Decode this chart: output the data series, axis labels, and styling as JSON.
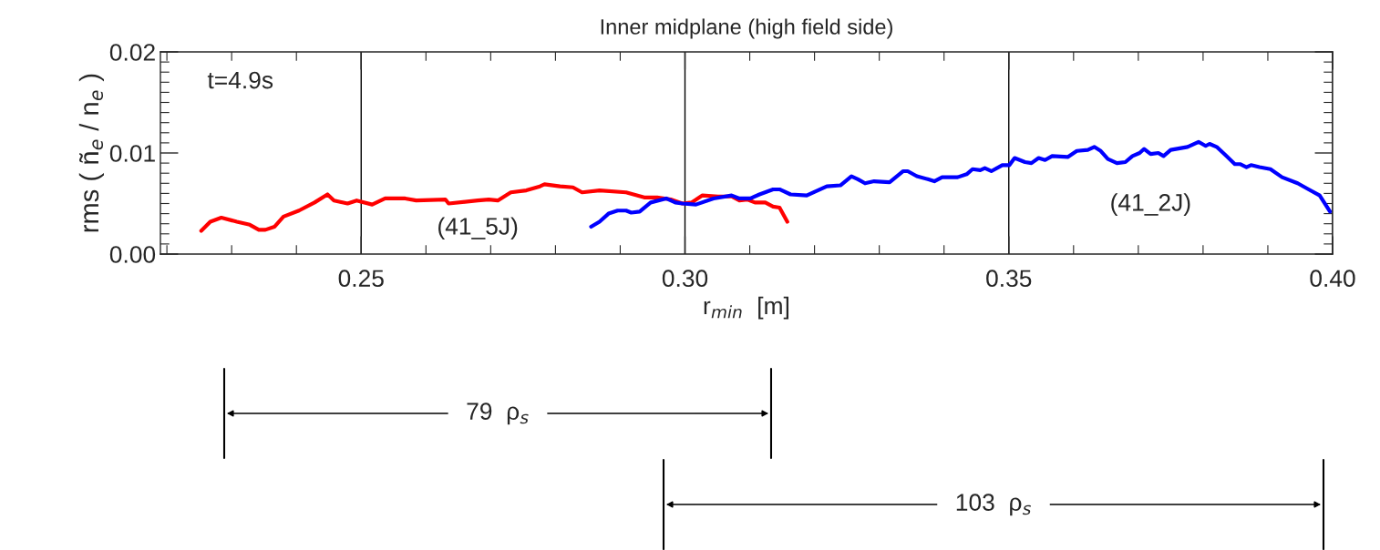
{
  "chart_data": {
    "type": "line",
    "title": "Inner midplane (high field side)",
    "xlabel": "r$_{min}$  [m]",
    "ylabel": "rms ( ñ$_{e}$ / n$_{e}$ )",
    "series": [
      {
        "name": "(41_5J)",
        "color": "#ff0000",
        "x": [
          0.2253,
          0.2267,
          0.2284,
          0.2308,
          0.2328,
          0.2342,
          0.2352,
          0.2366,
          0.238,
          0.2404,
          0.2428,
          0.2448,
          0.2458,
          0.2479,
          0.2493,
          0.2517,
          0.2537,
          0.2568,
          0.2585,
          0.263,
          0.2635,
          0.268,
          0.2697,
          0.2711,
          0.2731,
          0.2755,
          0.2776,
          0.2783,
          0.2807,
          0.2827,
          0.2841,
          0.2868,
          0.2909,
          0.2937,
          0.2957,
          0.2978,
          0.2996,
          0.301,
          0.3027,
          0.3051,
          0.3072,
          0.3084,
          0.3096,
          0.3108,
          0.3124,
          0.3136,
          0.3146,
          0.3158
        ],
        "values": [
          0.0023,
          0.0032,
          0.0036,
          0.0032,
          0.0029,
          0.0024,
          0.0024,
          0.0027,
          0.0037,
          0.0043,
          0.0051,
          0.0059,
          0.0053,
          0.005,
          0.0053,
          0.0049,
          0.0055,
          0.0055,
          0.0053,
          0.0054,
          0.005,
          0.0053,
          0.0054,
          0.0053,
          0.0061,
          0.0063,
          0.0067,
          0.0069,
          0.0067,
          0.0066,
          0.0061,
          0.0063,
          0.0061,
          0.0056,
          0.0056,
          0.0054,
          0.005,
          0.0051,
          0.0058,
          0.0057,
          0.0057,
          0.0053,
          0.0054,
          0.0051,
          0.0051,
          0.0047,
          0.0046,
          0.0032
        ]
      },
      {
        "name": "(41_2J)",
        "color": "#0000ff",
        "x": [
          0.2855,
          0.2868,
          0.2882,
          0.2896,
          0.2909,
          0.2917,
          0.293,
          0.2947,
          0.2971,
          0.2985,
          0.2996,
          0.3017,
          0.3044,
          0.3072,
          0.3084,
          0.3101,
          0.3115,
          0.3136,
          0.3146,
          0.3163,
          0.3188,
          0.3198,
          0.3219,
          0.324,
          0.3257,
          0.3267,
          0.3278,
          0.3292,
          0.3316,
          0.3337,
          0.3344,
          0.3358,
          0.3375,
          0.3385,
          0.3397,
          0.3421,
          0.3435,
          0.3444,
          0.3456,
          0.3463,
          0.3473,
          0.349,
          0.3501,
          0.3509,
          0.3525,
          0.3535,
          0.3546,
          0.3556,
          0.3567,
          0.3591,
          0.3605,
          0.3622,
          0.3632,
          0.3642,
          0.3653,
          0.3667,
          0.368,
          0.3691,
          0.3702,
          0.3709,
          0.3719,
          0.3731,
          0.3739,
          0.375,
          0.3776,
          0.3793,
          0.3804,
          0.381,
          0.3821,
          0.3836,
          0.3849,
          0.3857,
          0.3867,
          0.3874,
          0.3887,
          0.3904,
          0.3922,
          0.3946,
          0.3963,
          0.398,
          0.3996
        ],
        "values": [
          0.0027,
          0.0032,
          0.004,
          0.0043,
          0.0043,
          0.0041,
          0.0042,
          0.0051,
          0.0055,
          0.0051,
          0.005,
          0.0049,
          0.0055,
          0.0058,
          0.0055,
          0.0055,
          0.0059,
          0.0064,
          0.0064,
          0.0059,
          0.0058,
          0.0061,
          0.0067,
          0.0068,
          0.0077,
          0.0074,
          0.007,
          0.0072,
          0.0071,
          0.0082,
          0.0082,
          0.0077,
          0.0074,
          0.0072,
          0.0076,
          0.0076,
          0.0079,
          0.0084,
          0.0083,
          0.0085,
          0.0082,
          0.0088,
          0.0088,
          0.0095,
          0.0091,
          0.009,
          0.0095,
          0.0093,
          0.0097,
          0.0096,
          0.0102,
          0.0103,
          0.0106,
          0.0102,
          0.0094,
          0.009,
          0.0091,
          0.0097,
          0.01,
          0.0104,
          0.0099,
          0.01,
          0.0097,
          0.0103,
          0.0106,
          0.0111,
          0.0107,
          0.0109,
          0.0106,
          0.0097,
          0.0089,
          0.0089,
          0.0086,
          0.0088,
          0.0086,
          0.0084,
          0.0076,
          0.007,
          0.0064,
          0.0058,
          0.0042
        ]
      }
    ],
    "xlim": [
      0.219,
      0.4
    ],
    "xticks": [
      0.25,
      {
        "value": 0.3,
        "label": "0.30"
      },
      0.35,
      {
        "value": 0.4,
        "label": "0.40"
      }
    ],
    "ylim": [
      0,
      0.02
    ],
    "yticks": [
      {
        "value": 0,
        "label": "0.00"
      },
      {
        "value": 0.01,
        "label": "0.01"
      },
      {
        "value": 0.02,
        "label": "0.02"
      }
    ],
    "annotations": [
      "t=4.9s",
      "79  ρ$_{s}$",
      "103  ρ$_{s}$"
    ],
    "grid": "x",
    "marker": "none",
    "line_style": "solid"
  }
}
